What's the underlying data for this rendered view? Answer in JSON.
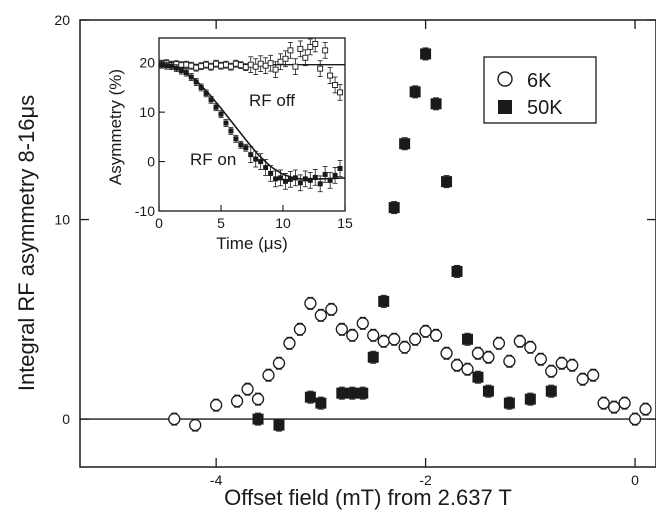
{
  "chart_data": [
    {
      "type": "scatter",
      "xlabel": "Offset field (mT) from 2.637 T",
      "ylabel": "Integral RF asymmetry 8-16μs",
      "xlim": [
        -5.3,
        0.2
      ],
      "ylim": [
        -2.4,
        20
      ],
      "xticks": [
        {
          "v": -4,
          "label": "-4"
        },
        {
          "v": -2,
          "label": "-2"
        },
        {
          "v": 0,
          "label": "0"
        }
      ],
      "yticks": [
        {
          "v": 0,
          "label": "0"
        },
        {
          "v": 10,
          "label": "10"
        },
        {
          "v": 20,
          "label": "20"
        }
      ],
      "zero_line": 0,
      "legend_placement": "top-right",
      "series": [
        {
          "name": "6K",
          "marker": "open-circle",
          "x": [
            -4.4,
            -4.2,
            -4.0,
            -3.8,
            -3.7,
            -3.6,
            -3.5,
            -3.4,
            -3.3,
            -3.2,
            -3.1,
            -3.0,
            -2.9,
            -2.8,
            -2.7,
            -2.6,
            -2.5,
            -2.4,
            -2.3,
            -2.2,
            -2.1,
            -2.0,
            -1.9,
            -1.8,
            -1.7,
            -1.6,
            -1.5,
            -1.4,
            -1.3,
            -1.2,
            -1.1,
            -1.0,
            -0.9,
            -0.8,
            -0.7,
            -0.6,
            -0.5,
            -0.4,
            -0.3,
            -0.2,
            -0.1,
            0.0,
            0.1
          ],
          "y": [
            0.0,
            -0.3,
            0.7,
            0.9,
            1.5,
            1.0,
            2.2,
            2.8,
            3.8,
            4.5,
            5.8,
            5.2,
            5.5,
            4.5,
            4.2,
            4.8,
            4.2,
            3.9,
            4.0,
            3.6,
            4.0,
            4.4,
            4.2,
            3.3,
            2.7,
            2.5,
            3.3,
            3.1,
            3.8,
            2.9,
            3.9,
            3.6,
            3.0,
            2.4,
            2.8,
            2.7,
            2.0,
            2.2,
            0.8,
            0.6,
            0.8,
            0.0,
            0.5
          ],
          "error": 0.3
        },
        {
          "name": "50K",
          "marker": "filled-square",
          "x": [
            -3.6,
            -3.4,
            -3.1,
            -3.0,
            -2.8,
            -2.7,
            -2.6,
            -2.5,
            -2.4,
            -2.3,
            -2.2,
            -2.1,
            -2.0,
            -1.9,
            -1.8,
            -1.7,
            -1.6,
            -1.5,
            -1.4,
            -1.2,
            -1.0,
            -0.8
          ],
          "y": [
            0.0,
            -0.3,
            1.1,
            0.8,
            1.3,
            1.3,
            1.3,
            3.1,
            5.9,
            10.6,
            13.8,
            16.4,
            18.3,
            15.8,
            11.9,
            7.4,
            4.0,
            2.1,
            1.4,
            0.8,
            1.0,
            1.4
          ],
          "error": 0.3
        }
      ]
    },
    {
      "type": "scatter",
      "xlabel": "Time (μs)",
      "ylabel": "Asymmetry (%)",
      "xlim": [
        0,
        15
      ],
      "ylim": [
        -10,
        25
      ],
      "xticks": [
        {
          "v": 0,
          "label": "0"
        },
        {
          "v": 5,
          "label": "5"
        },
        {
          "v": 10,
          "label": "10"
        },
        {
          "v": 15,
          "label": "15"
        }
      ],
      "yticks": [
        {
          "v": -10,
          "label": "-10"
        },
        {
          "v": 0,
          "label": "0"
        },
        {
          "v": 10,
          "label": "10"
        },
        {
          "v": 20,
          "label": "20"
        }
      ],
      "annotations": [
        "RF off",
        "RF on"
      ],
      "series": [
        {
          "label": "RF off",
          "marker": "open-square",
          "x": [
            0.2,
            0.6,
            1.0,
            1.4,
            1.8,
            2.2,
            2.6,
            3.0,
            3.4,
            3.8,
            4.2,
            4.6,
            5.0,
            5.4,
            5.8,
            6.2,
            6.6,
            7.0,
            7.4,
            7.8,
            8.2,
            8.6,
            9.0,
            9.4,
            9.8,
            10.2,
            10.6,
            11.0,
            11.4,
            11.8,
            12.2,
            12.6,
            13.0,
            13.4,
            13.8,
            14.2,
            14.6
          ],
          "y": [
            19.8,
            19.9,
            19.6,
            19.7,
            19.5,
            19.6,
            19.4,
            19.0,
            19.3,
            19.6,
            19.2,
            19.8,
            19.4,
            19.6,
            19.2,
            19.8,
            19.5,
            19.1,
            19.6,
            19.2,
            19.8,
            19.4,
            19.9,
            18.6,
            20.2,
            20.8,
            22.5,
            19.2,
            22.8,
            21.0,
            23.2,
            23.8,
            18.8,
            22.5,
            17.4,
            15.5,
            14.0
          ],
          "fit": [
            [
              0,
              19.6
            ],
            [
              15,
              19.6
            ]
          ]
        },
        {
          "label": "RF on",
          "marker": "filled-square",
          "x": [
            0.2,
            0.6,
            1.0,
            1.4,
            1.8,
            2.2,
            2.6,
            3.0,
            3.4,
            3.8,
            4.2,
            4.6,
            5.0,
            5.4,
            5.8,
            6.2,
            6.6,
            7.0,
            7.4,
            7.8,
            8.2,
            8.6,
            9.0,
            9.4,
            9.8,
            10.2,
            10.6,
            11.0,
            11.4,
            11.8,
            12.2,
            12.6,
            13.0,
            13.4,
            13.8,
            14.2,
            14.6
          ],
          "y": [
            19.6,
            19.4,
            19.3,
            18.9,
            18.4,
            18.0,
            17.1,
            16.1,
            15.0,
            13.8,
            12.5,
            11.0,
            9.6,
            7.8,
            6.2,
            4.6,
            3.4,
            2.8,
            1.4,
            0.5,
            0.0,
            -1.2,
            -2.4,
            -3.5,
            -3.3,
            -4.0,
            -3.6,
            -3.3,
            -4.3,
            -3.5,
            -3.8,
            -3.2,
            -4.5,
            -2.6,
            -3.8,
            -2.8,
            -1.4
          ],
          "fit": [
            [
              0,
              19.6
            ],
            [
              1,
              19.2
            ],
            [
              2,
              18.2
            ],
            [
              3,
              16.4
            ],
            [
              4,
              13.8
            ],
            [
              5,
              10.8
            ],
            [
              6,
              7.6
            ],
            [
              7,
              4.4
            ],
            [
              8,
              1.4
            ],
            [
              9,
              -1.0
            ],
            [
              10,
              -2.6
            ],
            [
              11,
              -3.4
            ],
            [
              12,
              -3.6
            ],
            [
              13,
              -3.5
            ],
            [
              14,
              -3.4
            ],
            [
              15,
              -3.3
            ]
          ]
        }
      ]
    }
  ]
}
